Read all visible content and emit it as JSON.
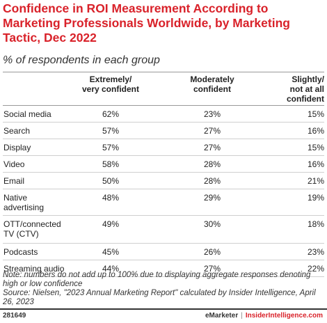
{
  "title": "Confidence in ROI Measurement According to Marketing Professionals Worldwide, by Marketing Tactic, Dec 2022",
  "subtitle": "% of respondents in each group",
  "colors": {
    "title": "#d9222a",
    "text": "#222222",
    "rule": "#999999"
  },
  "chart_data": {
    "type": "table",
    "title": "Confidence in ROI Measurement According to Marketing Professionals Worldwide, by Marketing Tactic, Dec 2022",
    "subtitle": "% of respondents in each group",
    "columns": [
      "",
      "Extremely/\nvery confident",
      "Moderately\nconfident",
      "Slightly/\nnot at all\nconfident"
    ],
    "rows": [
      {
        "label": "Social media",
        "values": [
          "62%",
          "23%",
          "15%"
        ]
      },
      {
        "label": "Search",
        "values": [
          "57%",
          "27%",
          "16%"
        ]
      },
      {
        "label": "Display",
        "values": [
          "57%",
          "27%",
          "15%"
        ]
      },
      {
        "label": "Video",
        "values": [
          "58%",
          "28%",
          "16%"
        ]
      },
      {
        "label": "Email",
        "values": [
          "50%",
          "28%",
          "21%"
        ]
      },
      {
        "label": "Native\nadvertising",
        "values": [
          "48%",
          "29%",
          "19%"
        ]
      },
      {
        "label": "OTT/connected\nTV (CTV)",
        "values": [
          "49%",
          "30%",
          "18%"
        ]
      },
      {
        "label": "Podcasts",
        "values": [
          "45%",
          "26%",
          "23%"
        ]
      },
      {
        "label": "Streaming audio",
        "values": [
          "44%",
          "27%",
          "22%"
        ]
      }
    ]
  },
  "note": "Note: numbers do not add up to 100% due to displaying aggregate responses denoting high or low confidence",
  "source": "Source: Nielsen, \"2023 Annual Marketing Report\" calculated by Insider Intelligence, April 26, 2023",
  "footer": {
    "id": "281649",
    "brand": "eMarketer",
    "separator": "|",
    "brand2": "InsiderIntelligence.com"
  }
}
